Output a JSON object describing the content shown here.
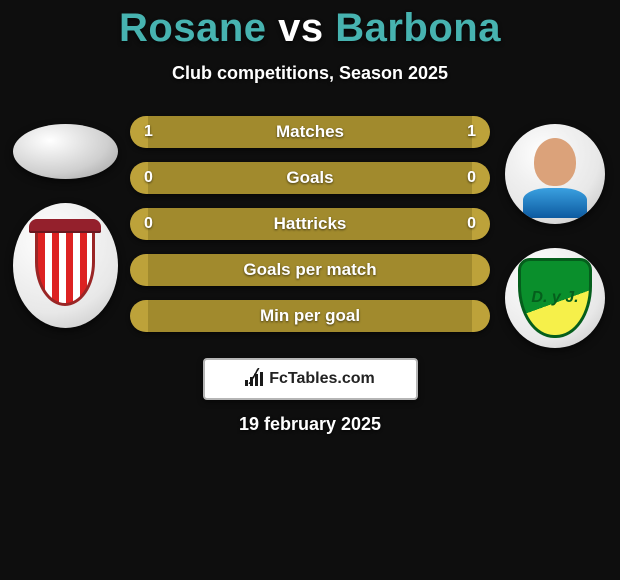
{
  "title": {
    "player1": "Rosane",
    "vs": " vs ",
    "player2": "Barbona",
    "color_player": "#47b3b0",
    "color_vs": "#ffffff",
    "fontsize": 40
  },
  "subtitle": "Club competitions, Season 2025",
  "bars": {
    "bg_center": "#a18a2d",
    "bg_left_cap": "#bda23a",
    "bg_right_cap": "#bda23a",
    "text_color": "#ffffff",
    "fontsize": 17,
    "items": [
      {
        "label": "Matches",
        "left": "1",
        "right": "1"
      },
      {
        "label": "Goals",
        "left": "0",
        "right": "0"
      },
      {
        "label": "Hattricks",
        "left": "0",
        "right": "0"
      },
      {
        "label": "Goals per match",
        "left": "",
        "right": ""
      },
      {
        "label": "Min per goal",
        "left": "",
        "right": ""
      }
    ]
  },
  "branding": {
    "text": "FcTables.com",
    "box_bg": "#ffffff",
    "border": "#b5b5b5"
  },
  "footer_date": "19 february 2025",
  "crest_right_text": "D. y J.",
  "background_color": "#0e0e0e"
}
